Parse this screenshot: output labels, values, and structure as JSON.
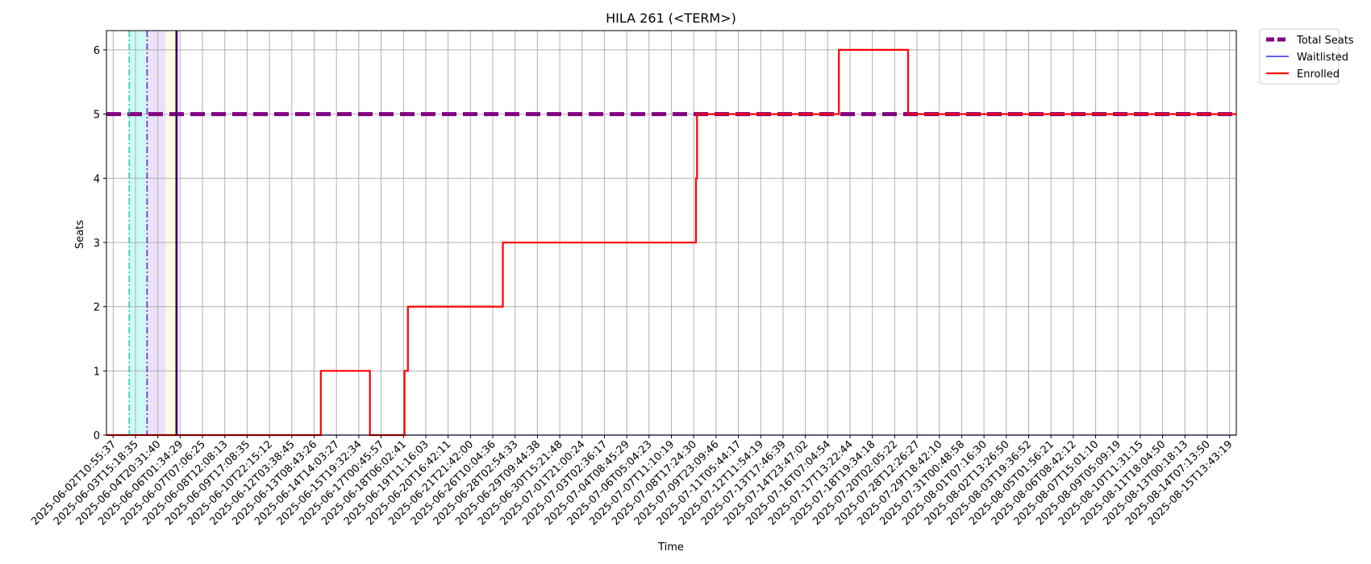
{
  "chart_data": {
    "type": "line",
    "title": "HILA 261 (<TERM>)",
    "xlabel": "Time",
    "ylabel": "Seats",
    "ylim": [
      0,
      6.3
    ],
    "yticks": [
      0,
      1,
      2,
      3,
      4,
      5,
      6
    ],
    "grid": true,
    "legend_position": "outside-top-right",
    "x_tick_labels": [
      "2025-06-02T10:55:37",
      "2025-06-03T15:18:35",
      "2025-06-04T20:31:40",
      "2025-06-06T01:34:29",
      "2025-06-07T07:06:25",
      "2025-06-08T12:08:13",
      "2025-06-09T17:08:35",
      "2025-06-10T22:15:12",
      "2025-06-12T03:38:45",
      "2025-06-13T08:43:26",
      "2025-06-14T14:03:27",
      "2025-06-15T19:32:34",
      "2025-06-17T00:45:57",
      "2025-06-18T06:02:41",
      "2025-06-19T11:16:03",
      "2025-06-20T16:42:11",
      "2025-06-21T21:42:00",
      "2025-06-26T10:04:36",
      "2025-06-28T02:54:33",
      "2025-06-29T09:44:38",
      "2025-06-30T15:21:48",
      "2025-07-01T21:00:24",
      "2025-07-03T02:36:17",
      "2025-07-04T08:45:29",
      "2025-07-06T05:04:23",
      "2025-07-07T11:10:19",
      "2025-07-08T17:24:30",
      "2025-07-09T23:09:46",
      "2025-07-11T05:44:17",
      "2025-07-12T11:54:19",
      "2025-07-13T17:46:39",
      "2025-07-14T23:47:02",
      "2025-07-16T07:04:54",
      "2025-07-17T13:22:44",
      "2025-07-18T19:34:18",
      "2025-07-20T02:05:22",
      "2025-07-28T12:26:27",
      "2025-07-29T18:42:10",
      "2025-07-31T00:48:58",
      "2025-08-01T07:16:30",
      "2025-08-02T13:26:50",
      "2025-08-03T19:36:52",
      "2025-08-05T01:56:21",
      "2025-08-06T08:42:12",
      "2025-08-07T15:01:10",
      "2025-08-09T05:09:19",
      "2025-08-10T11:31:15",
      "2025-08-11T18:04:50",
      "2025-08-13T00:18:13",
      "2025-08-14T07:13:50",
      "2025-08-15T13:43:19"
    ],
    "x_tick_index_range": [
      -0.3,
      50.3
    ],
    "series": [
      {
        "name": "Total Seats",
        "color": "#800080",
        "style": "dashed",
        "points": [
          [
            -0.3,
            5
          ],
          [
            50.3,
            5
          ]
        ]
      },
      {
        "name": "Waitlisted",
        "color": "#0000ff",
        "style": "solid",
        "points": [
          [
            -0.3,
            0
          ],
          [
            50.3,
            0
          ]
        ]
      },
      {
        "name": "Enrolled",
        "color": "#ff0000",
        "style": "step",
        "points": [
          [
            -0.3,
            0
          ],
          [
            9.3,
            0
          ],
          [
            9.3,
            1
          ],
          [
            11.5,
            1
          ],
          [
            11.5,
            0
          ],
          [
            13.05,
            0
          ],
          [
            13.05,
            1
          ],
          [
            13.2,
            1
          ],
          [
            13.2,
            2
          ],
          [
            17.45,
            2
          ],
          [
            17.45,
            3
          ],
          [
            26.1,
            3
          ],
          [
            26.1,
            4
          ],
          [
            26.15,
            4
          ],
          [
            26.15,
            5
          ],
          [
            32.5,
            5
          ],
          [
            32.5,
            6
          ],
          [
            35.6,
            6
          ],
          [
            35.6,
            5
          ],
          [
            50.3,
            5
          ]
        ]
      }
    ],
    "shaded_regions": [
      {
        "from": 0.7,
        "to": 1.5,
        "color": "#00e5d8"
      },
      {
        "from": 1.5,
        "to": 2.35,
        "color": "#9a6fe0"
      },
      {
        "from": 2.35,
        "to": 2.85,
        "color": "#eef07a"
      }
    ],
    "vertical_markers": [
      {
        "x": 0.72,
        "color": "#20c9b0",
        "style": "dashdot"
      },
      {
        "x": 1.52,
        "color": "#6a1ad0",
        "style": "dashdot"
      },
      {
        "x": 2.82,
        "color": "#000000",
        "style": "solid"
      },
      {
        "x": 2.87,
        "color": "#6a1ad0",
        "style": "solid"
      }
    ]
  }
}
